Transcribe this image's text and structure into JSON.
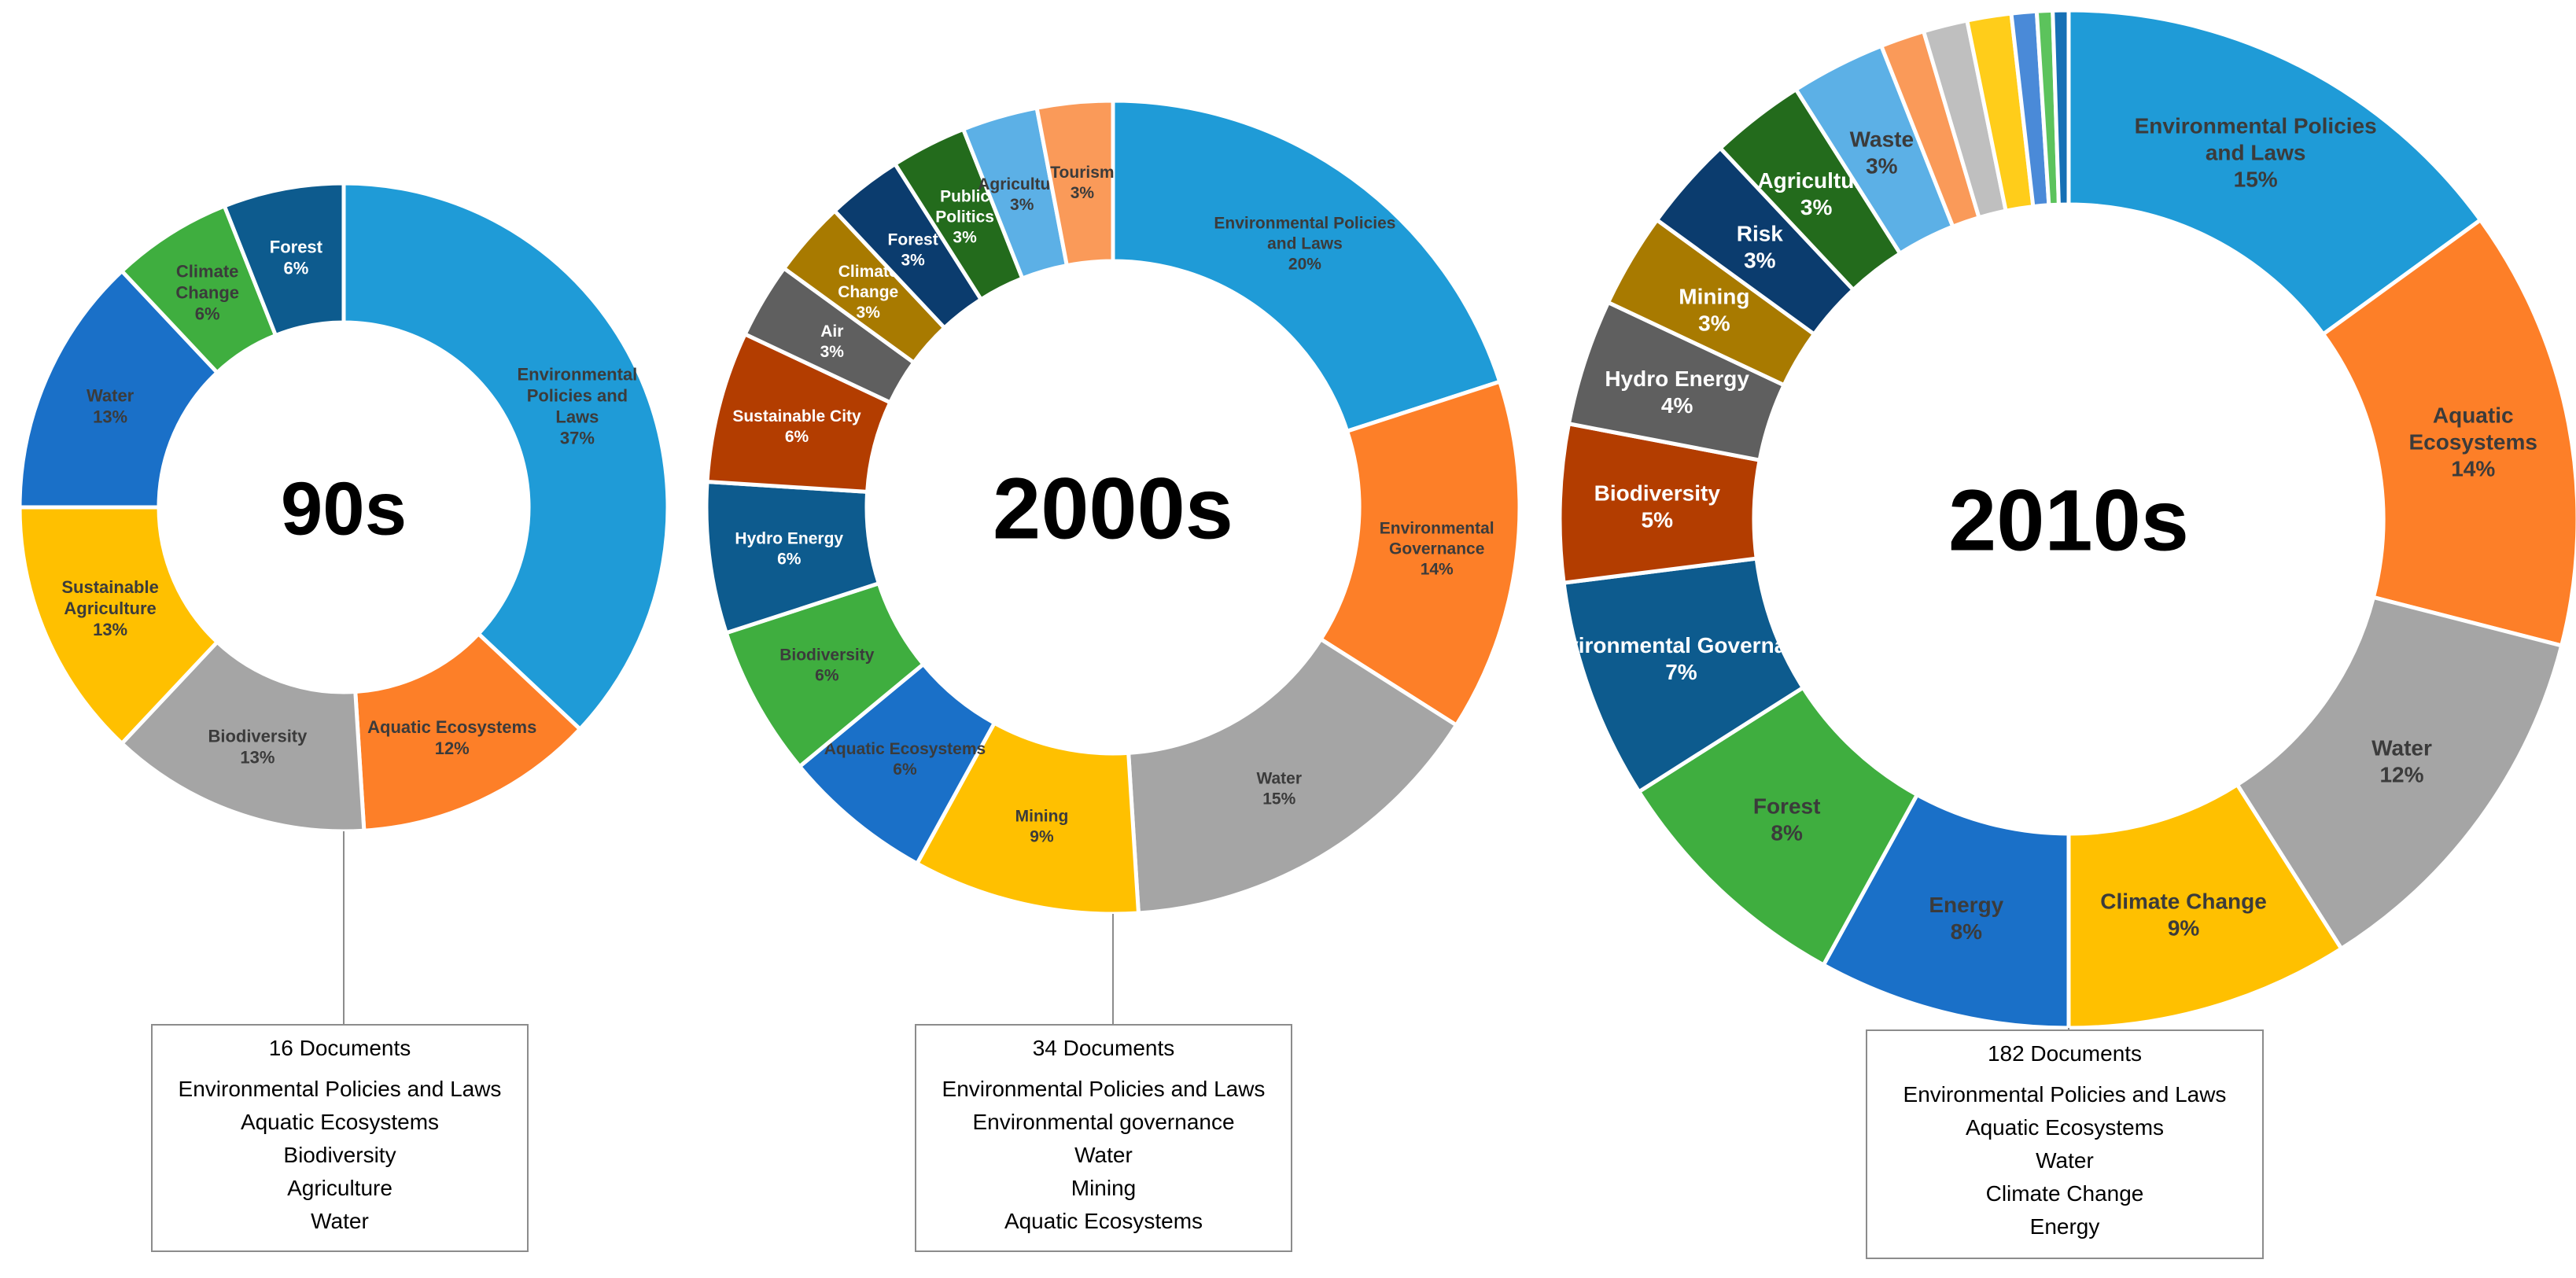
{
  "chart_data": [
    {
      "type": "donut",
      "title": "90s",
      "documents": "16 Documents",
      "top_topics": [
        "Environmental Policies and Laws",
        "Aquatic Ecosystems",
        "Biodiversity",
        "Agriculture",
        "Water"
      ],
      "slices": [
        {
          "label": "Environmental Policies and Laws",
          "display": [
            "Environmental",
            "Policies and",
            "Laws",
            "37%"
          ],
          "value": 37,
          "color": "#1f9bd7",
          "text": "#3b3b3b"
        },
        {
          "label": "Aquatic Ecosystems",
          "display": [
            "Aquatic Ecosystems",
            "12%"
          ],
          "value": 12,
          "color": "#fd7f28",
          "text": "#3b3b3b"
        },
        {
          "label": "Biodiversity",
          "display": [
            "Biodiversity",
            "13%"
          ],
          "value": 13,
          "color": "#a5a5a5",
          "text": "#3b3b3b"
        },
        {
          "label": "Sustainable Agriculture",
          "display": [
            "Sustainable",
            "Agriculture",
            "13%"
          ],
          "value": 13,
          "color": "#ffc000",
          "text": "#3b3b3b"
        },
        {
          "label": "Water",
          "display": [
            "Water",
            "13%"
          ],
          "value": 13,
          "color": "#1a70c8",
          "text": "#3b3b3b"
        },
        {
          "label": "Climate Change",
          "display": [
            "Climate",
            "Change",
            "6%"
          ],
          "value": 6,
          "color": "#3fae3f",
          "text": "#3b3b3b"
        },
        {
          "label": "Forest",
          "display": [
            "Forest",
            "6%"
          ],
          "value": 6,
          "color": "#0d5b8e",
          "text": "#ffffff"
        }
      ]
    },
    {
      "type": "donut",
      "title": "2000s",
      "documents": "34 Documents",
      "top_topics": [
        "Environmental Policies and Laws",
        "Environmental governance",
        "Water",
        "Mining",
        "Aquatic Ecosystems"
      ],
      "slices": [
        {
          "label": "Environmental Policies and Laws",
          "display": [
            "Environmental Policies",
            "and Laws",
            "20%"
          ],
          "value": 20,
          "color": "#1f9bd7",
          "text": "#3b3b3b"
        },
        {
          "label": "Environmental Governance",
          "display": [
            "Environmental",
            "Governance",
            "14%"
          ],
          "value": 14,
          "color": "#fd7f28",
          "text": "#3b3b3b"
        },
        {
          "label": "Water",
          "display": [
            "Water",
            "15%"
          ],
          "value": 15,
          "color": "#a5a5a5",
          "text": "#3b3b3b"
        },
        {
          "label": "Mining",
          "display": [
            "Mining",
            "9%"
          ],
          "value": 9,
          "color": "#ffc000",
          "text": "#3b3b3b"
        },
        {
          "label": "Aquatic Ecosystems",
          "display": [
            "Aquatic Ecosystems",
            "6%"
          ],
          "value": 6,
          "color": "#1a70c8",
          "text": "#3b3b3b"
        },
        {
          "label": "Biodiversity",
          "display": [
            "Biodiversity",
            "6%"
          ],
          "value": 6,
          "color": "#3fae3f",
          "text": "#3b3b3b"
        },
        {
          "label": "Hydro Energy",
          "display": [
            "Hydro Energy",
            "6%"
          ],
          "value": 6,
          "color": "#0d5b8e",
          "text": "#ffffff"
        },
        {
          "label": "Sustainable City",
          "display": [
            "Sustainable City",
            "6%"
          ],
          "value": 6,
          "color": "#b33d00",
          "text": "#ffffff"
        },
        {
          "label": "Air",
          "display": [
            "Air",
            "3%"
          ],
          "value": 3,
          "color": "#5f5f5f",
          "text": "#ffffff"
        },
        {
          "label": "Climate Change",
          "display": [
            "Climate",
            "Change",
            "3%"
          ],
          "value": 3,
          "color": "#a87a00",
          "text": "#ffffff"
        },
        {
          "label": "Forest",
          "display": [
            "Forest",
            "3%"
          ],
          "value": 3,
          "color": "#0b3c6e",
          "text": "#ffffff"
        },
        {
          "label": "Public Politics",
          "display": [
            "Public",
            "Politics",
            "3%"
          ],
          "value": 3,
          "color": "#236b1c",
          "text": "#ffffff"
        },
        {
          "label": "Agriculture",
          "display": [
            "Agriculture",
            "3%"
          ],
          "value": 3,
          "color": "#5cb0e6",
          "text": "#3b3b3b"
        },
        {
          "label": "Tourism",
          "display": [
            "Tourism",
            "3%"
          ],
          "value": 3,
          "color": "#fa9a59",
          "text": "#3b3b3b"
        }
      ]
    },
    {
      "type": "donut",
      "title": "2010s",
      "documents": "182 Documents",
      "top_topics": [
        "Environmental Policies and Laws",
        "Aquatic Ecosystems",
        "Water",
        "Climate Change",
        "Energy"
      ],
      "slices": [
        {
          "label": "Environmental Policies and Laws",
          "display": [
            "Environmental Policies",
            "and Laws",
            "15%"
          ],
          "value": 15,
          "color": "#1f9bd7",
          "text": "#3b3b3b"
        },
        {
          "label": "Aquatic Ecosystems",
          "display": [
            "Aquatic",
            "Ecosystems",
            "14%"
          ],
          "value": 14,
          "color": "#fd7f28",
          "text": "#3b3b3b"
        },
        {
          "label": "Water",
          "display": [
            "Water",
            "12%"
          ],
          "value": 12,
          "color": "#a5a5a5",
          "text": "#3b3b3b"
        },
        {
          "label": "Climate Change",
          "display": [
            "Climate Change",
            "9%"
          ],
          "value": 9,
          "color": "#ffc000",
          "text": "#3b3b3b"
        },
        {
          "label": "Energy",
          "display": [
            "Energy",
            "8%"
          ],
          "value": 8,
          "color": "#1a70c8",
          "text": "#3b3b3b"
        },
        {
          "label": "Forest",
          "display": [
            "Forest",
            "8%"
          ],
          "value": 8,
          "color": "#3fae3f",
          "text": "#3b3b3b"
        },
        {
          "label": "Environmental Governance",
          "display": [
            "Environmental Governance",
            "7%"
          ],
          "value": 7,
          "color": "#0d5b8e",
          "text": "#ffffff"
        },
        {
          "label": "Biodiversity",
          "display": [
            "Biodiversity",
            "5%"
          ],
          "value": 5,
          "color": "#b33d00",
          "text": "#ffffff"
        },
        {
          "label": "Hydro Energy",
          "display": [
            "Hydro Energy",
            "4%"
          ],
          "value": 4,
          "color": "#5f5f5f",
          "text": "#ffffff"
        },
        {
          "label": "Mining",
          "display": [
            "Mining",
            "3%"
          ],
          "value": 3,
          "color": "#a87a00",
          "text": "#ffffff"
        },
        {
          "label": "Risk",
          "display": [
            "Risk",
            "3%"
          ],
          "value": 3,
          "color": "#0b3c6e",
          "text": "#ffffff"
        },
        {
          "label": "Agriculture",
          "display": [
            "Agriculture",
            "3%"
          ],
          "value": 3,
          "color": "#236b1c",
          "text": "#ffffff"
        },
        {
          "label": "Waste",
          "display": [
            "Waste",
            "3%"
          ],
          "value": 3,
          "color": "#5cb0e6",
          "text": "#3b3b3b"
        },
        {
          "label": "",
          "display": [],
          "value": 1.4,
          "color": "#fa9a59",
          "text": "#3b3b3b"
        },
        {
          "label": "",
          "display": [],
          "value": 1.4,
          "color": "#bfbfbf",
          "text": "#3b3b3b"
        },
        {
          "label": "",
          "display": [],
          "value": 1.4,
          "color": "#ffcd1a",
          "text": "#3b3b3b"
        },
        {
          "label": "",
          "display": [],
          "value": 0.8,
          "color": "#4a8ad8",
          "text": "#3b3b3b"
        },
        {
          "label": "",
          "display": [],
          "value": 0.5,
          "color": "#5cc35c",
          "text": "#3b3b3b"
        },
        {
          "label": "",
          "display": [],
          "value": 0.5,
          "color": "#1670b5",
          "text": "#3b3b3b"
        }
      ]
    }
  ]
}
